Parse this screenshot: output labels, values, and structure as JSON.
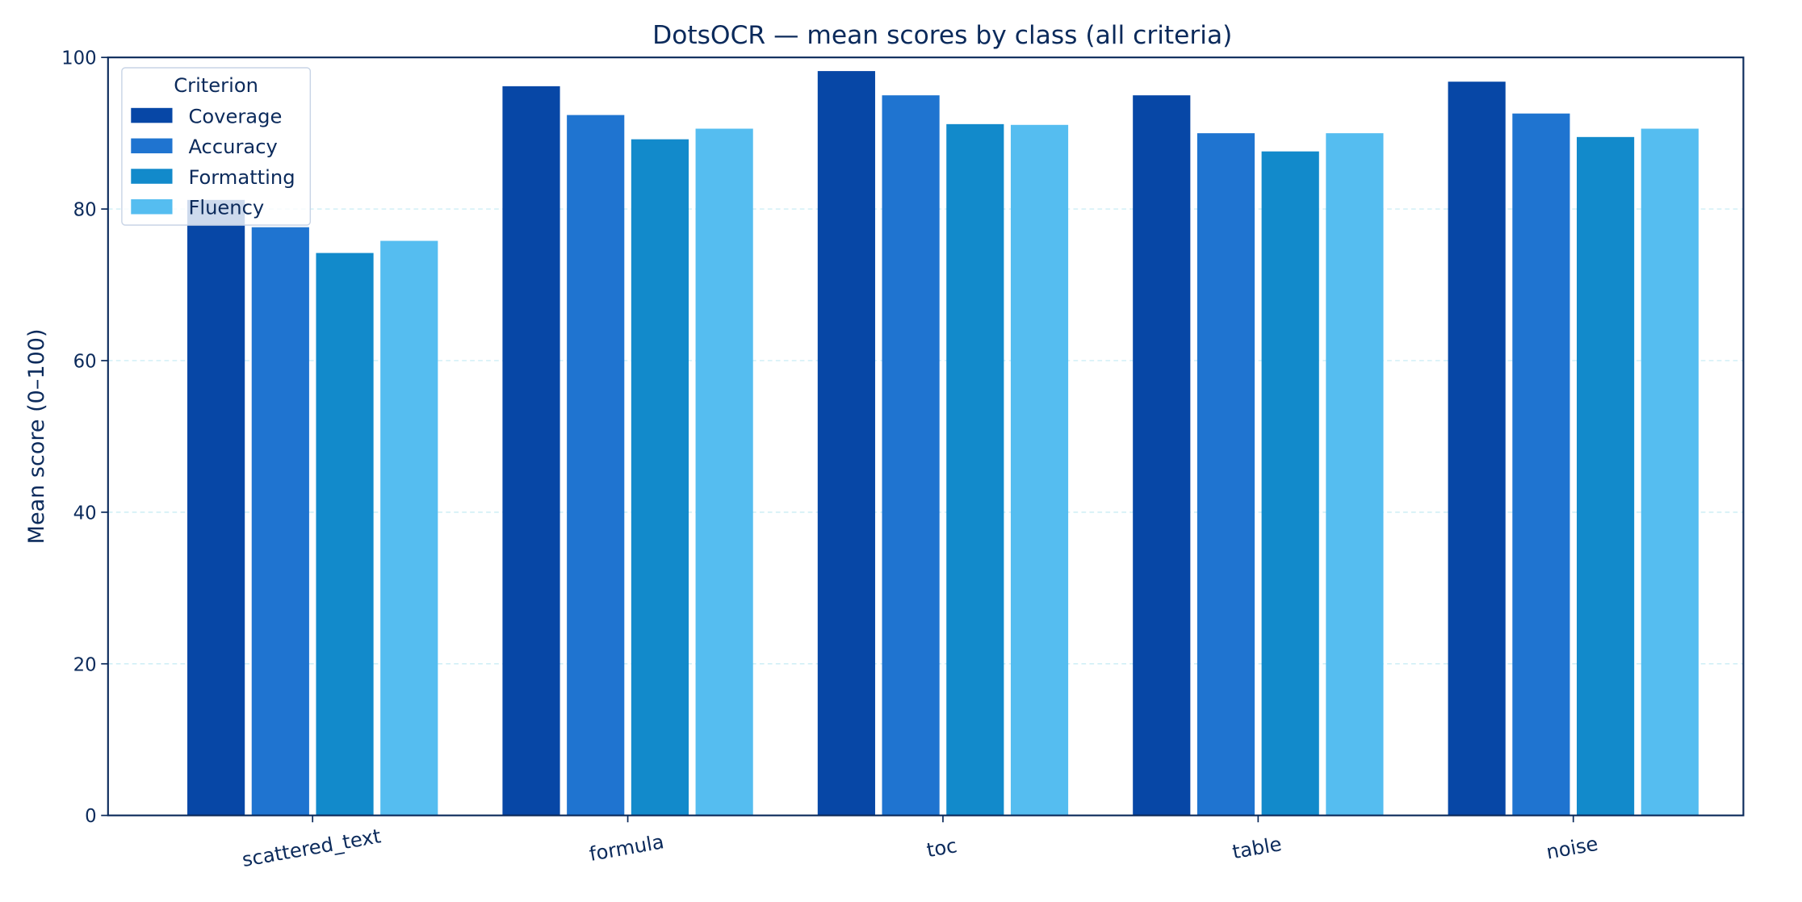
{
  "chart_data": {
    "type": "bar",
    "title": "DotsOCR — mean scores by class (all criteria)",
    "y_label": "Mean score (0–100)",
    "categories": [
      "scattered_text",
      "formula",
      "toc",
      "table",
      "noise"
    ],
    "series": [
      {
        "name": "Coverage",
        "color": "#0747a6",
        "values": [
          81.2,
          96.2,
          98.2,
          95.0,
          96.8
        ]
      },
      {
        "name": "Accuracy",
        "color": "#1f74d0",
        "values": [
          77.6,
          92.4,
          95.0,
          90.0,
          92.6
        ]
      },
      {
        "name": "Formatting",
        "color": "#128acb",
        "values": [
          74.2,
          89.2,
          91.2,
          87.6,
          89.5
        ]
      },
      {
        "name": "Fluency",
        "color": "#55bdf0",
        "values": [
          75.8,
          90.6,
          91.1,
          90.0,
          90.6
        ]
      }
    ],
    "legend_title": "Criterion",
    "legend_position": "upper left",
    "ylim": [
      0,
      100
    ],
    "yticks": [
      0,
      20,
      40,
      60,
      80,
      100
    ],
    "grid": true
  }
}
